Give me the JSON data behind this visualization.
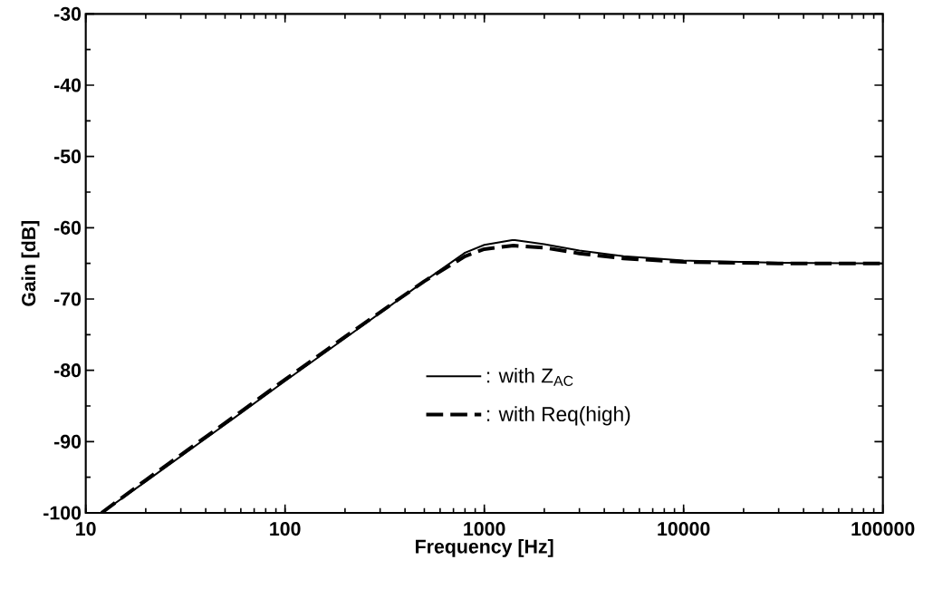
{
  "chart_data": {
    "type": "line",
    "xlabel": "Frequency [Hz]",
    "ylabel": "Gain [dB]",
    "log": "x",
    "xlim": [
      10,
      100000
    ],
    "ylim": [
      -100,
      -30
    ],
    "xticks": [
      10,
      100,
      1000,
      10000,
      100000
    ],
    "yticks": [
      -100,
      -90,
      -80,
      -70,
      -60,
      -50,
      -40,
      -30
    ],
    "grid": false,
    "legend": "bottom right",
    "series": [
      {
        "name": ": with Z$_{AC}$",
        "color": "#000000",
        "line_style": "solid",
        "x": [
          12,
          20,
          50,
          100,
          200,
          500,
          800,
          1000,
          1400,
          2000,
          3000,
          5000,
          10000,
          30000,
          100000
        ],
        "values": [
          -100,
          -95.6,
          -87.6,
          -81.5,
          -75.5,
          -67.5,
          -63.5,
          -62.4,
          -61.7,
          -62.3,
          -63.2,
          -64.0,
          -64.6,
          -64.9,
          -65.0
        ]
      },
      {
        "name": ": with Req(high)",
        "color": "#000000",
        "line_style": "dashed",
        "x": [
          12,
          20,
          50,
          100,
          200,
          500,
          800,
          1000,
          1400,
          2000,
          3000,
          5000,
          10000,
          30000,
          100000
        ],
        "values": [
          -100,
          -95.4,
          -87.4,
          -81.3,
          -75.3,
          -67.5,
          -64.0,
          -63.0,
          -62.5,
          -62.8,
          -63.6,
          -64.3,
          -64.8,
          -65.0,
          -65.0
        ]
      }
    ]
  }
}
